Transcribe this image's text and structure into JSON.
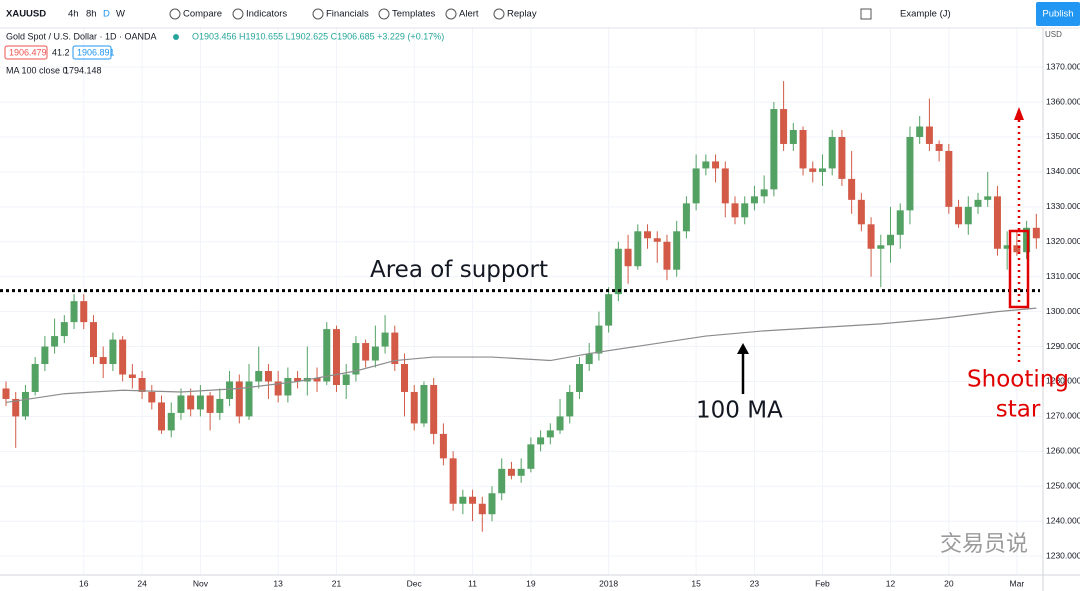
{
  "toolbar": {
    "symbol": "XAUUSD",
    "intervals": [
      "4h",
      "8h",
      "D",
      "W"
    ],
    "buttons": [
      "Compare",
      "Indicators",
      "Financials",
      "Templates",
      "Alert",
      "Replay"
    ],
    "layout": "Example (J)",
    "publish": "Publish"
  },
  "legend": {
    "title": "Gold Spot / U.S. Dollar · 1D · OANDA",
    "ohlc": "O1903.456 H1910.655 L1902.625 C1906.685 +3.229 (+0.17%)",
    "bid": "1906.479",
    "spread": "41.2",
    "ask": "1906.891",
    "ma_value": "1794.148"
  },
  "currency": "USD",
  "watermark": "交易员说",
  "chart_data": {
    "type": "candlestick",
    "categories": [
      null,
      null,
      null,
      null,
      null,
      null,
      null,
      null,
      "16",
      null,
      null,
      null,
      null,
      null,
      "24",
      null,
      null,
      null,
      null,
      null,
      "Nov",
      null,
      null,
      null,
      null,
      null,
      null,
      null,
      "13",
      null,
      null,
      null,
      null,
      null,
      "21",
      null,
      null,
      null,
      null,
      null,
      null,
      null,
      "Dec",
      null,
      null,
      null,
      null,
      null,
      "11",
      null,
      null,
      null,
      null,
      null,
      "19",
      null,
      null,
      null,
      null,
      null,
      null,
      null,
      "2018",
      null,
      null,
      null,
      null,
      null,
      null,
      null,
      null,
      "15",
      null,
      null,
      null,
      null,
      null,
      "23",
      null,
      null,
      null,
      null,
      null,
      null,
      "Feb",
      null,
      null,
      null,
      null,
      null,
      null,
      "12",
      null,
      null,
      null,
      null,
      null,
      "20",
      null,
      null,
      null,
      null,
      null,
      null,
      "Mar",
      null,
      null
    ],
    "open": [
      1278,
      1275,
      1270,
      1277,
      1285,
      1290,
      1293,
      1297,
      1303,
      1297,
      1287,
      1285,
      1292,
      1282,
      1281,
      1277,
      1274,
      1266,
      1271,
      1276,
      1272,
      1276,
      1271,
      1275,
      1280,
      1270,
      1280,
      1283,
      1280,
      1276,
      1281,
      1280,
      1281,
      1280,
      1295,
      1279,
      1282,
      1291,
      1286,
      1290,
      1294,
      1285,
      1277,
      1268,
      1279,
      1265,
      1258,
      1245,
      1247,
      1245,
      1242,
      1248,
      1255,
      1253,
      1255,
      1262,
      1264,
      1266,
      1270,
      1277,
      1285,
      1288,
      1296,
      1305,
      1318,
      1313,
      1323,
      1321,
      1320,
      1312,
      1323,
      1331,
      1341,
      1343,
      1341,
      1331,
      1327,
      1331,
      1333,
      1335,
      1358,
      1348,
      1352,
      1341,
      1340,
      1341,
      1350,
      1338,
      1332,
      1325,
      1318,
      1319,
      1322,
      1329,
      1350,
      1353,
      1348,
      1346,
      1330,
      1325,
      1330,
      1332,
      1333,
      1318,
      1319,
      1317,
      1324
    ],
    "high": [
      1280,
      1277,
      1279,
      1287,
      1293,
      1298,
      1299,
      1305,
      1305,
      1299,
      1290,
      1294,
      1293,
      1285,
      1283,
      1279,
      1276,
      1274,
      1278,
      1278,
      1279,
      1277,
      1278,
      1283,
      1282,
      1285,
      1290,
      1285,
      1283,
      1284,
      1283,
      1290,
      1284,
      1297,
      1296,
      1285,
      1293,
      1292,
      1296,
      1299,
      1296,
      1288,
      1279,
      1280,
      1281,
      1268,
      1260,
      1249,
      1249,
      1247,
      1250,
      1258,
      1257,
      1258,
      1264,
      1266,
      1268,
      1275,
      1279,
      1287,
      1291,
      1300,
      1307,
      1320,
      1322,
      1325,
      1325,
      1323,
      1322,
      1326,
      1333,
      1345,
      1345,
      1345,
      1343,
      1333,
      1333,
      1336,
      1339,
      1360,
      1366,
      1354,
      1353,
      1343,
      1345,
      1352,
      1352,
      1346,
      1334,
      1327,
      1322,
      1330,
      1331,
      1353,
      1356,
      1361,
      1349,
      1348,
      1332,
      1333,
      1334,
      1340,
      1336,
      1323,
      1323,
      1326,
      1328
    ],
    "low": [
      1273,
      1261,
      1269,
      1276,
      1283,
      1288,
      1291,
      1295,
      1295,
      1285,
      1281,
      1283,
      1280,
      1278,
      1275,
      1272,
      1265,
      1264,
      1269,
      1270,
      1270,
      1266,
      1269,
      1273,
      1268,
      1269,
      1278,
      1275,
      1274,
      1274,
      1278,
      1276,
      1277,
      1279,
      1277,
      1275,
      1280,
      1284,
      1284,
      1288,
      1283,
      1270,
      1266,
      1267,
      1262,
      1256,
      1243,
      1242,
      1240,
      1237,
      1240,
      1246,
      1252,
      1251,
      1254,
      1260,
      1262,
      1265,
      1268,
      1275,
      1283,
      1286,
      1294,
      1303,
      1308,
      1312,
      1318,
      1314,
      1309,
      1310,
      1321,
      1329,
      1339,
      1337,
      1327,
      1325,
      1325,
      1329,
      1331,
      1333,
      1346,
      1346,
      1339,
      1337,
      1336,
      1339,
      1336,
      1328,
      1323,
      1310,
      1307,
      1314,
      1318,
      1325,
      1348,
      1346,
      1343,
      1328,
      1324,
      1322,
      1328,
      1330,
      1316,
      1312,
      1316,
      1315,
      1318
    ],
    "close": [
      1275,
      1270,
      1277,
      1285,
      1290,
      1293,
      1297,
      1303,
      1297,
      1287,
      1285,
      1292,
      1282,
      1281,
      1277,
      1274,
      1266,
      1271,
      1276,
      1272,
      1276,
      1271,
      1275,
      1280,
      1270,
      1280,
      1283,
      1280,
      1276,
      1281,
      1280,
      1281,
      1280,
      1295,
      1279,
      1282,
      1291,
      1286,
      1290,
      1294,
      1285,
      1277,
      1268,
      1279,
      1265,
      1258,
      1245,
      1247,
      1245,
      1242,
      1248,
      1255,
      1253,
      1255,
      1262,
      1264,
      1266,
      1270,
      1277,
      1285,
      1288,
      1296,
      1305,
      1318,
      1313,
      1323,
      1321,
      1320,
      1312,
      1323,
      1331,
      1341,
      1343,
      1341,
      1331,
      1327,
      1331,
      1333,
      1335,
      1358,
      1348,
      1352,
      1341,
      1340,
      1341,
      1350,
      1338,
      1332,
      1325,
      1318,
      1319,
      1322,
      1329,
      1350,
      1353,
      1348,
      1346,
      1330,
      1325,
      1330,
      1332,
      1333,
      1318,
      1319,
      1317,
      1324,
      1321
    ],
    "up_color": "#53a163",
    "down_color": "#d25a47",
    "overlays": [
      {
        "name": "MA 100 close 0",
        "color": "#8c8c8c",
        "x": [
          0,
          6,
          12,
          18,
          24,
          30,
          36,
          40,
          44,
          50,
          56,
          60,
          66,
          72,
          78,
          84,
          90,
          96,
          102,
          106
        ],
        "values": [
          1274,
          1276.5,
          1277.5,
          1277,
          1278,
          1280,
          1283,
          1286,
          1287,
          1287,
          1286,
          1288,
          1290.5,
          1293,
          1294.5,
          1295.5,
          1296.5,
          1298,
          1300,
          1301
        ]
      }
    ],
    "ylim": [
      1224.6,
      1381.2
    ],
    "yticks": [
      {
        "value": 1230,
        "label": "1230.000"
      },
      {
        "value": 1240,
        "label": "1240.000"
      },
      {
        "value": 1250,
        "label": "1250.000"
      },
      {
        "value": 1260,
        "label": "1260.000"
      },
      {
        "value": 1270,
        "label": "1270.000"
      },
      {
        "value": 1280,
        "label": "1280.000"
      },
      {
        "value": 1290,
        "label": "1290.000"
      },
      {
        "value": 1300,
        "label": "1300.000"
      },
      {
        "value": 1310,
        "label": "1310.000"
      },
      {
        "value": 1320,
        "label": "1320.000"
      },
      {
        "value": 1330,
        "label": "1330.000"
      },
      {
        "value": 1340,
        "label": "1340.000"
      },
      {
        "value": 1350,
        "label": "1350.000"
      },
      {
        "value": 1360,
        "label": "1360.000"
      },
      {
        "value": 1370,
        "label": "1370.000"
      }
    ],
    "grid": true,
    "support_level": 1306,
    "annotations": {
      "support": "Area of support",
      "ma": "100 MA",
      "pattern": [
        "Shooting",
        "star"
      ]
    }
  }
}
